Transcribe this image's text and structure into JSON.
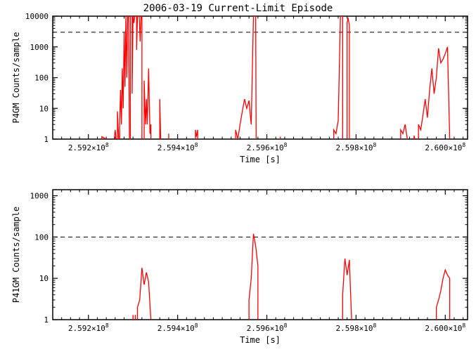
{
  "title": "2006-03-19 Current-Limit Episode",
  "xlabel": "Time [s]",
  "xlim": [
    259120000.0,
    260050000.0
  ],
  "xticks": [
    {
      "pos": 259200000.0,
      "base": "2.592",
      "exp": "8"
    },
    {
      "pos": 259400000.0,
      "base": "2.594",
      "exp": "8"
    },
    {
      "pos": 259600000.0,
      "base": "2.596",
      "exp": "8"
    },
    {
      "pos": 259800000.0,
      "base": "2.598",
      "exp": "8"
    },
    {
      "pos": 260000000.0,
      "base": "2.600",
      "exp": "8"
    }
  ],
  "colors": {
    "line": "#ff0000",
    "axis": "#000000",
    "dash": "#000000"
  },
  "panel1": {
    "ylabel": "P4GM Counts/sample",
    "ylim": [
      1,
      10000
    ],
    "yticks": [
      1,
      10,
      100,
      1000,
      10000
    ],
    "ref_line": 3000,
    "segments": [
      [
        [
          259230000.0,
          1
        ],
        [
          259230000.0,
          1.2
        ],
        [
          259240000.0,
          1
        ]
      ],
      [
        [
          259258000.0,
          1
        ],
        [
          259258000.0,
          1
        ],
        [
          259260000.0,
          2
        ],
        [
          259262000.0,
          1
        ]
      ],
      [
        [
          259265000.0,
          1
        ],
        [
          259265000.0,
          8
        ],
        [
          259268000.0,
          1
        ]
      ],
      [
        [
          259270000.0,
          1
        ],
        [
          259270000.0,
          3
        ],
        [
          259272000.0,
          40
        ],
        [
          259274000.0,
          3
        ],
        [
          259276000.0,
          200
        ],
        [
          259278000.0,
          10
        ],
        [
          259280000.0,
          3000
        ],
        [
          259282000.0,
          50
        ],
        [
          259284000.0,
          10000
        ],
        [
          259286000.0,
          100
        ],
        [
          259288000.0,
          10000
        ],
        [
          259290000.0,
          10000
        ],
        [
          259292000.0,
          1
        ]
      ],
      [
        [
          259294000.0,
          1
        ],
        [
          259294000.0,
          10000
        ],
        [
          259298000.0,
          10000
        ],
        [
          259298000.0,
          30
        ],
        [
          259300000.0,
          10000
        ],
        [
          259302000.0,
          6000
        ],
        [
          259304000.0,
          10000
        ],
        [
          259308000.0,
          10000
        ],
        [
          259308000.0,
          800
        ],
        [
          259310000.0,
          10000
        ],
        [
          259314000.0,
          10000
        ],
        [
          259316000.0,
          1500
        ],
        [
          259318000.0,
          10000
        ],
        [
          259320000.0,
          10000
        ],
        [
          259320000.0,
          1
        ]
      ],
      [
        [
          259325000.0,
          1
        ],
        [
          259325000.0,
          80
        ],
        [
          259328000.0,
          3
        ],
        [
          259330000.0,
          20
        ],
        [
          259332000.0,
          3
        ],
        [
          259335000.0,
          200
        ],
        [
          259338000.0,
          1.5
        ],
        [
          259340000.0,
          3
        ],
        [
          259340000.0,
          1
        ]
      ],
      [
        [
          259360000.0,
          1
        ],
        [
          259360000.0,
          20
        ],
        [
          259362000.0,
          1
        ]
      ],
      [
        [
          259380000.0,
          1
        ],
        [
          259380000.0,
          1.5
        ],
        [
          259380000.0,
          1
        ]
      ],
      [
        [
          259440000.0,
          1
        ],
        [
          259440000.0,
          2
        ],
        [
          259442000.0,
          1.2
        ],
        [
          259445000.0,
          2
        ],
        [
          259445000.0,
          1
        ]
      ],
      [
        [
          259530000.0,
          1
        ],
        [
          259530000.0,
          2
        ],
        [
          259535000.0,
          1
        ],
        [
          259540000.0,
          3
        ],
        [
          259545000.0,
          8
        ],
        [
          259550000.0,
          20
        ],
        [
          259555000.0,
          10
        ],
        [
          259560000.0,
          18
        ],
        [
          259565000.0,
          3
        ],
        [
          259570000.0,
          10000
        ],
        [
          259575000.0,
          10000
        ],
        [
          259576000.0,
          1
        ]
      ],
      [
        [
          259630000.0,
          1
        ],
        [
          259630000.0,
          1.2
        ],
        [
          259630000.0,
          1
        ]
      ],
      [
        [
          259750000.0,
          1
        ],
        [
          259750000.0,
          2
        ],
        [
          259755000.0,
          1.5
        ],
        [
          259760000.0,
          4
        ],
        [
          259765000.0,
          10000
        ],
        [
          259770000.0,
          10000
        ],
        [
          259770000.0,
          1
        ]
      ],
      [
        [
          259780000.0,
          1
        ],
        [
          259780000.0,
          6000
        ],
        [
          259782000.0,
          9000
        ],
        [
          259785000.0,
          5000
        ],
        [
          259785000.0,
          1
        ]
      ],
      [
        [
          259900000.0,
          1
        ],
        [
          259900000.0,
          2
        ],
        [
          259905000.0,
          1.5
        ],
        [
          259910000.0,
          3
        ],
        [
          259915000.0,
          1
        ]
      ],
      [
        [
          259930000.0,
          1
        ],
        [
          259930000.0,
          1.3
        ],
        [
          259932000.0,
          1
        ]
      ],
      [
        [
          259940000.0,
          1
        ],
        [
          259940000.0,
          3
        ],
        [
          259945000.0,
          2
        ],
        [
          259950000.0,
          6
        ],
        [
          259955000.0,
          20
        ],
        [
          259960000.0,
          5
        ],
        [
          259965000.0,
          40
        ],
        [
          259970000.0,
          200
        ],
        [
          259975000.0,
          30
        ],
        [
          259980000.0,
          100
        ],
        [
          259985000.0,
          900
        ],
        [
          259990000.0,
          300
        ],
        [
          259995000.0,
          400
        ],
        [
          260000000.0,
          600
        ],
        [
          260005000.0,
          1000
        ],
        [
          260010000.0,
          1
        ]
      ]
    ]
  },
  "panel2": {
    "ylabel": "P41GM Counts/sample",
    "ylim": [
      1,
      1400
    ],
    "yticks": [
      1,
      10,
      100,
      1000
    ],
    "ref_line": 100,
    "segments": [
      [
        [
          259300000.0,
          1
        ],
        [
          259300000.0,
          1.3
        ],
        [
          259300000.0,
          1
        ]
      ],
      [
        [
          259305000.0,
          1
        ],
        [
          259305000.0,
          1.3
        ],
        [
          259305000.0,
          1
        ]
      ],
      [
        [
          259310000.0,
          1
        ],
        [
          259310000.0,
          2
        ],
        [
          259315000.0,
          3
        ],
        [
          259320000.0,
          18
        ],
        [
          259325000.0,
          7
        ],
        [
          259330000.0,
          14
        ],
        [
          259335000.0,
          8
        ],
        [
          259340000.0,
          1
        ]
      ],
      [
        [
          259560000.0,
          1
        ],
        [
          259560000.0,
          3
        ],
        [
          259565000.0,
          10
        ],
        [
          259570000.0,
          120
        ],
        [
          259575000.0,
          60
        ],
        [
          259580000.0,
          20
        ],
        [
          259580000.0,
          1
        ]
      ],
      [
        [
          259770000.0,
          1
        ],
        [
          259770000.0,
          4
        ],
        [
          259775000.0,
          30
        ],
        [
          259780000.0,
          12
        ],
        [
          259785000.0,
          28
        ],
        [
          259790000.0,
          1
        ]
      ],
      [
        [
          259980000.0,
          1
        ],
        [
          259980000.0,
          2
        ],
        [
          259985000.0,
          3
        ],
        [
          259990000.0,
          5
        ],
        [
          259995000.0,
          10
        ],
        [
          260000000.0,
          16
        ],
        [
          260005000.0,
          12
        ],
        [
          260010000.0,
          10
        ],
        [
          260010000.0,
          1
        ]
      ]
    ]
  }
}
